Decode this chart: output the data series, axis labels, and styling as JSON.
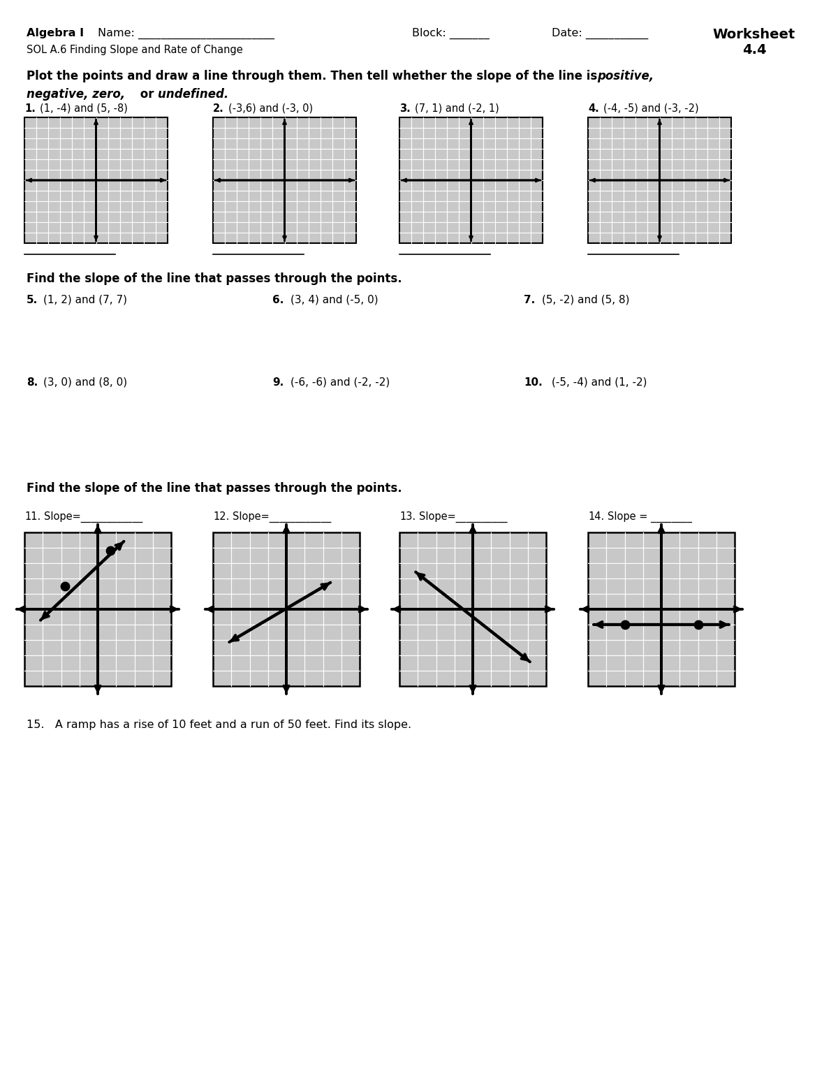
{
  "page_bg": "#ffffff",
  "grid_bg": "#c8c8c8",
  "grid_line_color": "#ffffff",
  "axis_color": "#000000",
  "problems_1to4": [
    {
      "num": "1.",
      "label": "(1, -4) and (5, -8)"
    },
    {
      "num": "2.",
      "label": "(-3,6) and (-3, 0)"
    },
    {
      "num": "3.",
      "label": "(7, 1) and (-2, 1)"
    },
    {
      "num": "4.",
      "label": "(-4, -5) and (-3, -2)"
    }
  ],
  "p5_num": "5.",
  "p5_label": "(1, 2) and (7, 7)",
  "p6_num": "6.",
  "p6_label": "(3, 4) and (-5, 0)",
  "p7_num": "7.",
  "p7_label": "(5, -2) and (5, 8)",
  "p8_num": "8.",
  "p8_label": "(3, 0) and (8, 0)",
  "p9_num": "9.",
  "p9_label": "(-6, -6) and (-2, -2)",
  "p10_num": "10.",
  "p10_label": "(-5, -4) and (1, -2)",
  "p15": "15.   A ramp has a rise of 10 feet and a run of 50 feet. Find its slope.",
  "slope_nums": [
    "11.",
    "12.",
    "13.",
    "14."
  ],
  "slope_labels": [
    "Slope=____________",
    "Slope=____________",
    "Slope=__________",
    "Slope = ________"
  ]
}
